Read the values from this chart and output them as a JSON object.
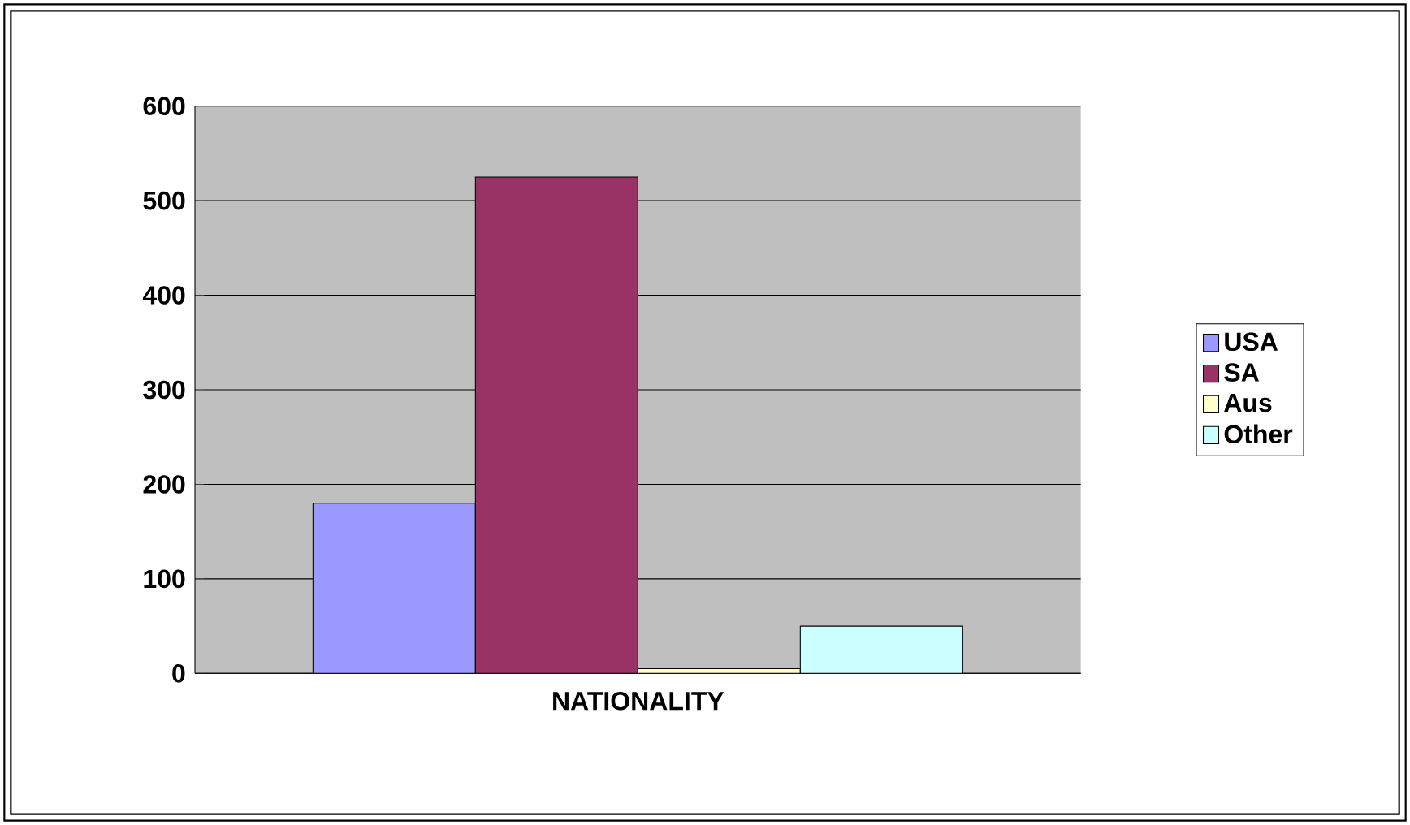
{
  "chart_data": {
    "type": "bar",
    "categories": [
      "NATIONALITY"
    ],
    "series": [
      {
        "name": "USA",
        "color": "#9999ff",
        "values": [
          180
        ]
      },
      {
        "name": "SA",
        "color": "#993366",
        "values": [
          525
        ]
      },
      {
        "name": "Aus",
        "color": "#ffffcc",
        "values": [
          5
        ]
      },
      {
        "name": "Other",
        "color": "#ccffff",
        "values": [
          50
        ]
      }
    ],
    "ylim": [
      0,
      600
    ],
    "yticks": [
      0,
      100,
      200,
      300,
      400,
      500,
      600
    ],
    "grid": "y",
    "legend": "right"
  }
}
